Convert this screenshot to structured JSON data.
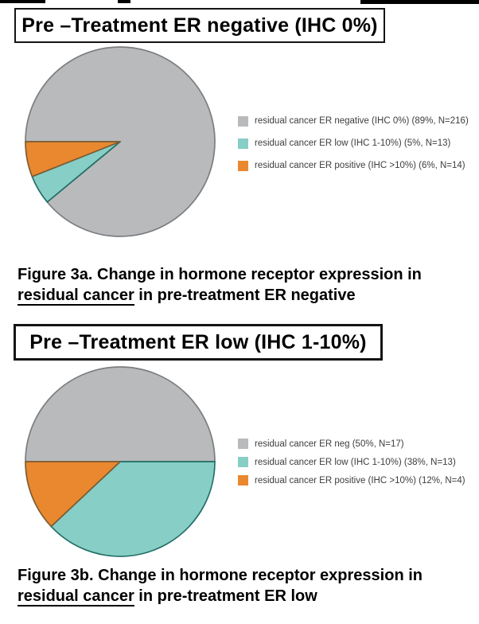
{
  "figures": [
    {
      "title": "Pre –Treatment ER negative (IHC 0%)",
      "caption_line1": "Figure 3a. Change in hormone receptor expression in",
      "caption_underlined": "residual cancer",
      "caption_rest": " in pre-treatment ER negative"
    },
    {
      "title": "Pre –Treatment ER low (IHC 1-10%)",
      "caption_line1": "Figure 3b. Change in hormone receptor expression in",
      "caption_underlined": "residual cancer",
      "caption_rest": " in pre-treatment ER low"
    }
  ],
  "palette": {
    "gray": "#b9babc",
    "teal": "#87cec6",
    "orange": "#e9882f",
    "gray_stroke": "#7b7e80",
    "teal_stroke": "#206e66",
    "orange_stroke": "#7d5c33",
    "legend_text": "#3d3d3d",
    "text": "#000000"
  },
  "chart_data": [
    {
      "type": "pie",
      "title": "Pre –Treatment ER negative (IHC 0%)",
      "labels": [
        "residual cancer ER negative (IHC 0%) (89%, N=216)",
        "residual cancer ER low (IHC 1-10%) (5%, N=13)",
        "residual cancer ER positive (IHC >10%) (6%, N=14)"
      ],
      "values": [
        89,
        5,
        6
      ],
      "counts": [
        216,
        13,
        14
      ],
      "colors": [
        "#b9babc",
        "#87cec6",
        "#e9882f"
      ],
      "stroke_colors": [
        "#7b7e80",
        "#206e66",
        "#7d5c33"
      ],
      "start_angle_clockwise_from_top": 270,
      "direction": "clockwise",
      "legend_position": "right"
    },
    {
      "type": "pie",
      "title": "Pre –Treatment ER low (IHC 1-10%)",
      "labels": [
        "residual cancer ER neg (50%, N=17)",
        "residual cancer ER low (IHC 1-10%) (38%, N=13)",
        "residual cancer ER positive (IHC >10%) (12%, N=4)"
      ],
      "values": [
        50,
        38,
        12
      ],
      "counts": [
        17,
        13,
        4
      ],
      "colors": [
        "#b9babc",
        "#87cec6",
        "#e9882f"
      ],
      "stroke_colors": [
        "#7b7e80",
        "#206e66",
        "#7d5c33"
      ],
      "start_angle_clockwise_from_top": 270,
      "direction": "clockwise",
      "legend_position": "right"
    }
  ]
}
